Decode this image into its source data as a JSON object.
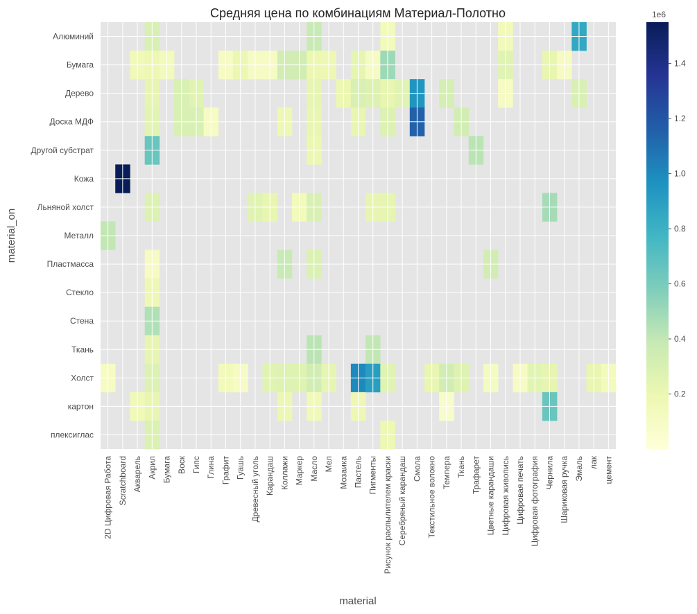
{
  "chart_data": {
    "type": "heatmap",
    "title": "Средняя цена по комбинациям Материал-Полотно",
    "xlabel": "material",
    "ylabel": "material_on",
    "x_categories": [
      "2D Цифровая Работа",
      "Scratchboard",
      "Акварель",
      "Акрил",
      "Бумага",
      "Воск",
      "Гипс",
      "Глина",
      "Графит",
      "Гуашь",
      "Древесный уголь",
      "Карандаш",
      "Коллажи",
      "Маркер",
      "Масло",
      "Мел",
      "Мозаика",
      "Пастель",
      "Пигменты",
      "Рисунок распылителем краски",
      "Серебряный карандаш",
      "Смола",
      "Текстильное волокно",
      "Темпера",
      "Ткань",
      "Трафарет",
      "Цветные карандаши",
      "Цифровая живопись",
      "Цифровая печать",
      "Цифровая фотография",
      "Чернила",
      "Шариковая ручка",
      "Эмаль",
      "лак",
      "цемент"
    ],
    "y_categories": [
      "Алюминий",
      "Бумага",
      "Дерево",
      "Доска МДФ",
      "Другой субстрат",
      "Кожа",
      "Льняной холст",
      "Металл",
      "Пластмасса",
      "Стекло",
      "Стена",
      "Ткань",
      "Холст",
      "картон",
      "плексиглас"
    ],
    "cells": [
      {
        "row": "Алюминий",
        "col": "Акрил",
        "value": 300000
      },
      {
        "row": "Алюминий",
        "col": "Масло",
        "value": 380000
      },
      {
        "row": "Алюминий",
        "col": "Рисунок распылителем краски",
        "value": 140000
      },
      {
        "row": "Алюминий",
        "col": "Цифровая живопись",
        "value": 150000
      },
      {
        "row": "Алюминий",
        "col": "Эмаль",
        "value": 850000
      },
      {
        "row": "Бумага",
        "col": "Акварель",
        "value": 160000
      },
      {
        "row": "Бумага",
        "col": "Акрил",
        "value": 180000
      },
      {
        "row": "Бумага",
        "col": "Бумага",
        "value": 140000
      },
      {
        "row": "Бумага",
        "col": "Графит",
        "value": 110000
      },
      {
        "row": "Бумага",
        "col": "Гуашь",
        "value": 200000
      },
      {
        "row": "Бумага",
        "col": "Древесный уголь",
        "value": 100000
      },
      {
        "row": "Бумага",
        "col": "Карандаш",
        "value": 100000
      },
      {
        "row": "Бумага",
        "col": "Коллажи",
        "value": 330000
      },
      {
        "row": "Бумага",
        "col": "Маркер",
        "value": 330000
      },
      {
        "row": "Бумага",
        "col": "Масло",
        "value": 200000
      },
      {
        "row": "Бумага",
        "col": "Мел",
        "value": 180000
      },
      {
        "row": "Бумага",
        "col": "Пастель",
        "value": 230000
      },
      {
        "row": "Бумага",
        "col": "Пигменты",
        "value": 110000
      },
      {
        "row": "Бумага",
        "col": "Рисунок распылителем краски",
        "value": 500000
      },
      {
        "row": "Бумага",
        "col": "Цифровая живопись",
        "value": 260000
      },
      {
        "row": "Бумага",
        "col": "Чернила",
        "value": 220000
      },
      {
        "row": "Бумага",
        "col": "Шариковая ручка",
        "value": 100000
      },
      {
        "row": "Дерево",
        "col": "Акрил",
        "value": 230000
      },
      {
        "row": "Дерево",
        "col": "Воск",
        "value": 300000
      },
      {
        "row": "Дерево",
        "col": "Гипс",
        "value": 260000
      },
      {
        "row": "Дерево",
        "col": "Масло",
        "value": 230000
      },
      {
        "row": "Дерево",
        "col": "Мозаика",
        "value": 200000
      },
      {
        "row": "Дерево",
        "col": "Пастель",
        "value": 300000
      },
      {
        "row": "Дерево",
        "col": "Пигменты",
        "value": 280000
      },
      {
        "row": "Дерево",
        "col": "Рисунок распылителем краски",
        "value": 220000
      },
      {
        "row": "Дерево",
        "col": "Серебряный карандаш",
        "value": 260000
      },
      {
        "row": "Дерево",
        "col": "Смола",
        "value": 950000
      },
      {
        "row": "Дерево",
        "col": "Темпера",
        "value": 320000
      },
      {
        "row": "Дерево",
        "col": "Цифровая живопись",
        "value": 100000
      },
      {
        "row": "Дерево",
        "col": "Эмаль",
        "value": 300000
      },
      {
        "row": "Доска МДФ",
        "col": "Акрил",
        "value": 250000
      },
      {
        "row": "Доска МДФ",
        "col": "Воск",
        "value": 300000
      },
      {
        "row": "Доска МДФ",
        "col": "Гипс",
        "value": 300000
      },
      {
        "row": "Доска МДФ",
        "col": "Глина",
        "value": 100000
      },
      {
        "row": "Доска МДФ",
        "col": "Коллажи",
        "value": 180000
      },
      {
        "row": "Доска МДФ",
        "col": "Масло",
        "value": 220000
      },
      {
        "row": "Доска МДФ",
        "col": "Пастель",
        "value": 220000
      },
      {
        "row": "Доска МДФ",
        "col": "Рисунок распылителем краски",
        "value": 280000
      },
      {
        "row": "Доска МДФ",
        "col": "Смола",
        "value": 1150000
      },
      {
        "row": "Доска МДФ",
        "col": "Ткань",
        "value": 330000
      },
      {
        "row": "Другой субстрат",
        "col": "Акрил",
        "value": 650000
      },
      {
        "row": "Другой субстрат",
        "col": "Масло",
        "value": 200000
      },
      {
        "row": "Другой субстрат",
        "col": "Трафарет",
        "value": 420000
      },
      {
        "row": "Кожа",
        "col": "Scratchboard",
        "value": 1550000
      },
      {
        "row": "Льняной холст",
        "col": "Акрил",
        "value": 280000
      },
      {
        "row": "Льняной холст",
        "col": "Древесный уголь",
        "value": 260000
      },
      {
        "row": "Льняной холст",
        "col": "Карандаш",
        "value": 220000
      },
      {
        "row": "Льняной холст",
        "col": "Маркер",
        "value": 140000
      },
      {
        "row": "Льняной холст",
        "col": "Масло",
        "value": 300000
      },
      {
        "row": "Льняной холст",
        "col": "Пигменты",
        "value": 230000
      },
      {
        "row": "Льняной холст",
        "col": "Рисунок распылителем краски",
        "value": 230000
      },
      {
        "row": "Льняной холст",
        "col": "Чернила",
        "value": 480000
      },
      {
        "row": "Металл",
        "col": "2D Цифровая Работа",
        "value": 400000
      },
      {
        "row": "Пластмасса",
        "col": "Акрил",
        "value": 110000
      },
      {
        "row": "Пластмасса",
        "col": "Коллажи",
        "value": 380000
      },
      {
        "row": "Пластмасса",
        "col": "Масло",
        "value": 290000
      },
      {
        "row": "Пластмасса",
        "col": "Цветные карандаши",
        "value": 330000
      },
      {
        "row": "Стекло",
        "col": "Акрил",
        "value": 180000
      },
      {
        "row": "Стена",
        "col": "Акрил",
        "value": 450000
      },
      {
        "row": "Ткань",
        "col": "Акрил",
        "value": 230000
      },
      {
        "row": "Ткань",
        "col": "Масло",
        "value": 420000
      },
      {
        "row": "Ткань",
        "col": "Пигменты",
        "value": 400000
      },
      {
        "row": "Холст",
        "col": "2D Цифровая Работа",
        "value": 100000
      },
      {
        "row": "Холст",
        "col": "Акрил",
        "value": 280000
      },
      {
        "row": "Холст",
        "col": "Графит",
        "value": 150000
      },
      {
        "row": "Холст",
        "col": "Гуашь",
        "value": 100000
      },
      {
        "row": "Холст",
        "col": "Карандаш",
        "value": 260000
      },
      {
        "row": "Холст",
        "col": "Коллажи",
        "value": 270000
      },
      {
        "row": "Холст",
        "col": "Маркер",
        "value": 270000
      },
      {
        "row": "Холст",
        "col": "Масло",
        "value": 330000
      },
      {
        "row": "Холст",
        "col": "Мел",
        "value": 230000
      },
      {
        "row": "Холст",
        "col": "Пастель",
        "value": 1000000
      },
      {
        "row": "Холст",
        "col": "Пигменты",
        "value": 900000
      },
      {
        "row": "Холст",
        "col": "Рисунок распылителем краски",
        "value": 260000
      },
      {
        "row": "Холст",
        "col": "Текстильное волокно",
        "value": 220000
      },
      {
        "row": "Холст",
        "col": "Темпера",
        "value": 330000
      },
      {
        "row": "Холст",
        "col": "Ткань",
        "value": 270000
      },
      {
        "row": "Холст",
        "col": "Цветные карандаши",
        "value": 120000
      },
      {
        "row": "Холст",
        "col": "Цифровая печать",
        "value": 100000
      },
      {
        "row": "Холст",
        "col": "Цифровая фотография",
        "value": 250000
      },
      {
        "row": "Холст",
        "col": "Чернила",
        "value": 230000
      },
      {
        "row": "Холст",
        "col": "лак",
        "value": 220000
      },
      {
        "row": "Холст",
        "col": "цемент",
        "value": 140000
      },
      {
        "row": "картон",
        "col": "Акварель",
        "value": 160000
      },
      {
        "row": "картон",
        "col": "Акрил",
        "value": 220000
      },
      {
        "row": "картон",
        "col": "Коллажи",
        "value": 200000
      },
      {
        "row": "картон",
        "col": "Масло",
        "value": 160000
      },
      {
        "row": "картон",
        "col": "Пастель",
        "value": 180000
      },
      {
        "row": "картон",
        "col": "Темпера",
        "value": 70000
      },
      {
        "row": "картон",
        "col": "Чернила",
        "value": 650000
      },
      {
        "row": "плексиглас",
        "col": "Акрил",
        "value": 290000
      },
      {
        "row": "плексиглас",
        "col": "Рисунок распылителем краски",
        "value": 190000
      }
    ],
    "colorbar": {
      "colormap": "YlGnBu",
      "vmin": 0,
      "vmax": 1550000,
      "ticks": [
        200000,
        400000,
        600000,
        800000,
        1000000,
        1200000,
        1400000
      ],
      "tick_labels": [
        "0.2",
        "0.4",
        "0.6",
        "0.8",
        "1.0",
        "1.2",
        "1.4"
      ],
      "offset_label": "1e6"
    },
    "background_color": "#e5e5e5",
    "grid": true
  }
}
